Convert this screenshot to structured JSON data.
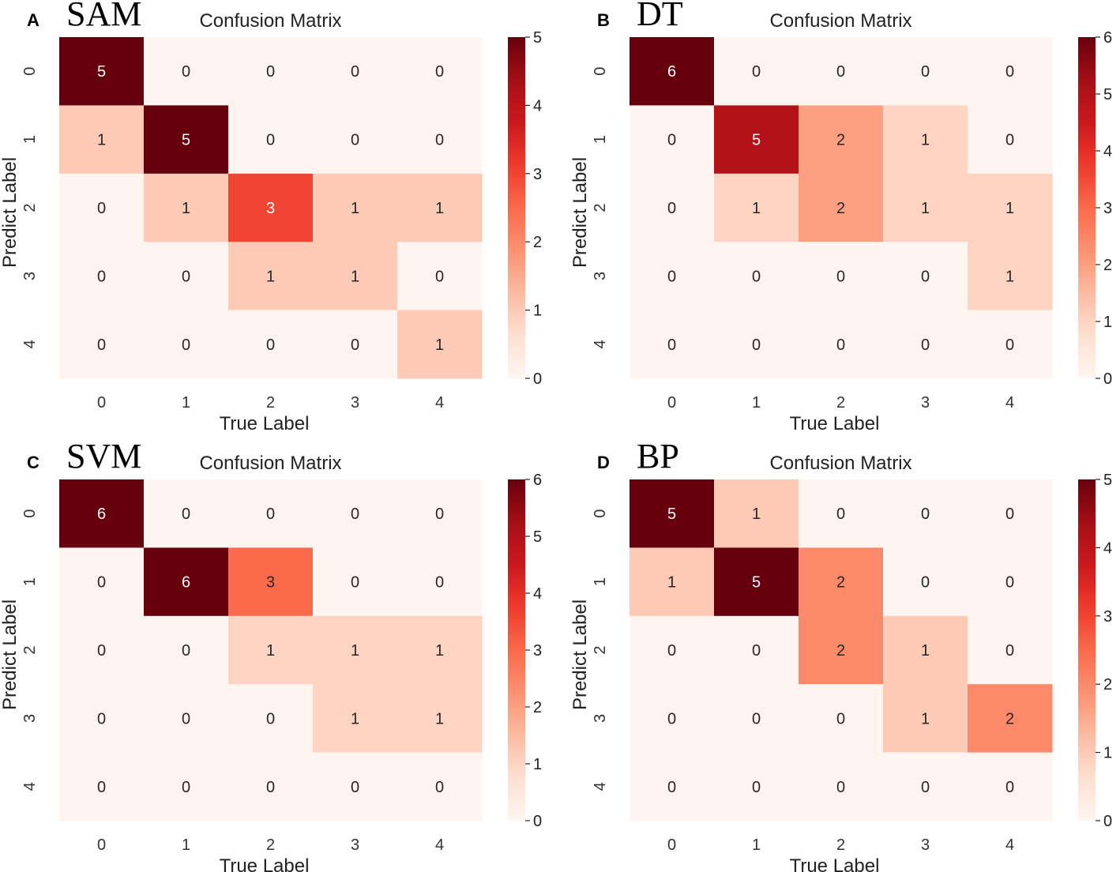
{
  "chart_data": [
    {
      "type": "heatmap",
      "panel_letter": "A",
      "method": "SAM",
      "title": "Confusion Matrix",
      "xlabel": "True Label",
      "ylabel": "Predict Label",
      "x_categories": [
        "0",
        "1",
        "2",
        "3",
        "4"
      ],
      "y_categories": [
        "0",
        "1",
        "2",
        "3",
        "4"
      ],
      "matrix": [
        [
          5,
          0,
          0,
          0,
          0
        ],
        [
          1,
          5,
          0,
          0,
          0
        ],
        [
          0,
          1,
          3,
          1,
          1
        ],
        [
          0,
          0,
          1,
          1,
          0
        ],
        [
          0,
          0,
          0,
          0,
          1
        ]
      ],
      "colorbar": {
        "range": [
          0,
          5
        ],
        "ticks": [
          0,
          1,
          2,
          3,
          4,
          5
        ]
      },
      "colormap": "Reds"
    },
    {
      "type": "heatmap",
      "panel_letter": "B",
      "method": "DT",
      "title": "Confusion Matrix",
      "xlabel": "True Label",
      "ylabel": "Predict Label",
      "x_categories": [
        "0",
        "1",
        "2",
        "3",
        "4"
      ],
      "y_categories": [
        "0",
        "1",
        "2",
        "3",
        "4"
      ],
      "matrix": [
        [
          6,
          0,
          0,
          0,
          0
        ],
        [
          0,
          5,
          2,
          1,
          0
        ],
        [
          0,
          1,
          2,
          1,
          1
        ],
        [
          0,
          0,
          0,
          0,
          1
        ],
        [
          0,
          0,
          0,
          0,
          0
        ]
      ],
      "colorbar": {
        "range": [
          0,
          6
        ],
        "ticks": [
          0,
          1,
          2,
          3,
          4,
          5,
          6
        ]
      },
      "colormap": "Reds"
    },
    {
      "type": "heatmap",
      "panel_letter": "C",
      "method": "SVM",
      "title": "Confusion Matrix",
      "xlabel": "True Label",
      "ylabel": "Predict Label",
      "x_categories": [
        "0",
        "1",
        "2",
        "3",
        "4"
      ],
      "y_categories": [
        "0",
        "1",
        "2",
        "3",
        "4"
      ],
      "matrix": [
        [
          6,
          0,
          0,
          0,
          0
        ],
        [
          0,
          6,
          3,
          0,
          0
        ],
        [
          0,
          0,
          1,
          1,
          1
        ],
        [
          0,
          0,
          0,
          1,
          1
        ],
        [
          0,
          0,
          0,
          0,
          0
        ]
      ],
      "colorbar": {
        "range": [
          0,
          6
        ],
        "ticks": [
          0,
          1,
          2,
          3,
          4,
          5,
          6
        ]
      },
      "colormap": "Reds"
    },
    {
      "type": "heatmap",
      "panel_letter": "D",
      "method": "BP",
      "title": "Confusion Matrix",
      "xlabel": "True Label",
      "ylabel": "Predict Label",
      "x_categories": [
        "0",
        "1",
        "2",
        "3",
        "4"
      ],
      "y_categories": [
        "0",
        "1",
        "2",
        "3",
        "4"
      ],
      "matrix": [
        [
          5,
          1,
          0,
          0,
          0
        ],
        [
          1,
          5,
          2,
          0,
          0
        ],
        [
          0,
          0,
          2,
          1,
          0
        ],
        [
          0,
          0,
          0,
          1,
          2
        ],
        [
          0,
          0,
          0,
          0,
          0
        ]
      ],
      "colorbar": {
        "range": [
          0,
          5
        ],
        "ticks": [
          0,
          1,
          2,
          3,
          4,
          5
        ]
      },
      "colormap": "Reds"
    }
  ],
  "colors": {
    "reds_low": "#fff5f0",
    "reds_1": "#fdd3c0",
    "reds_2": "#fca487",
    "reds_3": "#fb6a4a",
    "reds_4": "#e32f27",
    "reds_5": "#b21218",
    "reds_high": "#67000d"
  }
}
